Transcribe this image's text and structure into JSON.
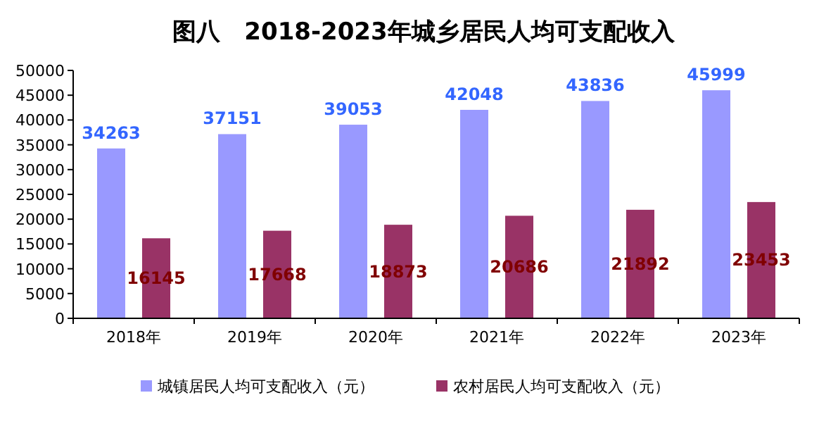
{
  "chart_data": {
    "type": "bar",
    "title": "图八　2018-2023年城乡居民人均可支配收入",
    "categories": [
      "2018年",
      "2019年",
      "2020年",
      "2021年",
      "2022年",
      "2023年"
    ],
    "series": [
      {
        "name": "城镇居民人均可支配收入（元）",
        "color": "#9999ff",
        "values": [
          34263,
          37151,
          39053,
          42048,
          43836,
          45999
        ]
      },
      {
        "name": "农村居民人均可支配收入（元）",
        "color": "#993366",
        "values": [
          16145,
          17668,
          18873,
          20686,
          21892,
          23453
        ]
      }
    ],
    "ylim": [
      0,
      50000
    ],
    "yticks": [
      0,
      5000,
      10000,
      15000,
      20000,
      25000,
      30000,
      35000,
      40000,
      45000,
      50000
    ],
    "grid": false,
    "legend": "bottom",
    "data_labels": true
  }
}
